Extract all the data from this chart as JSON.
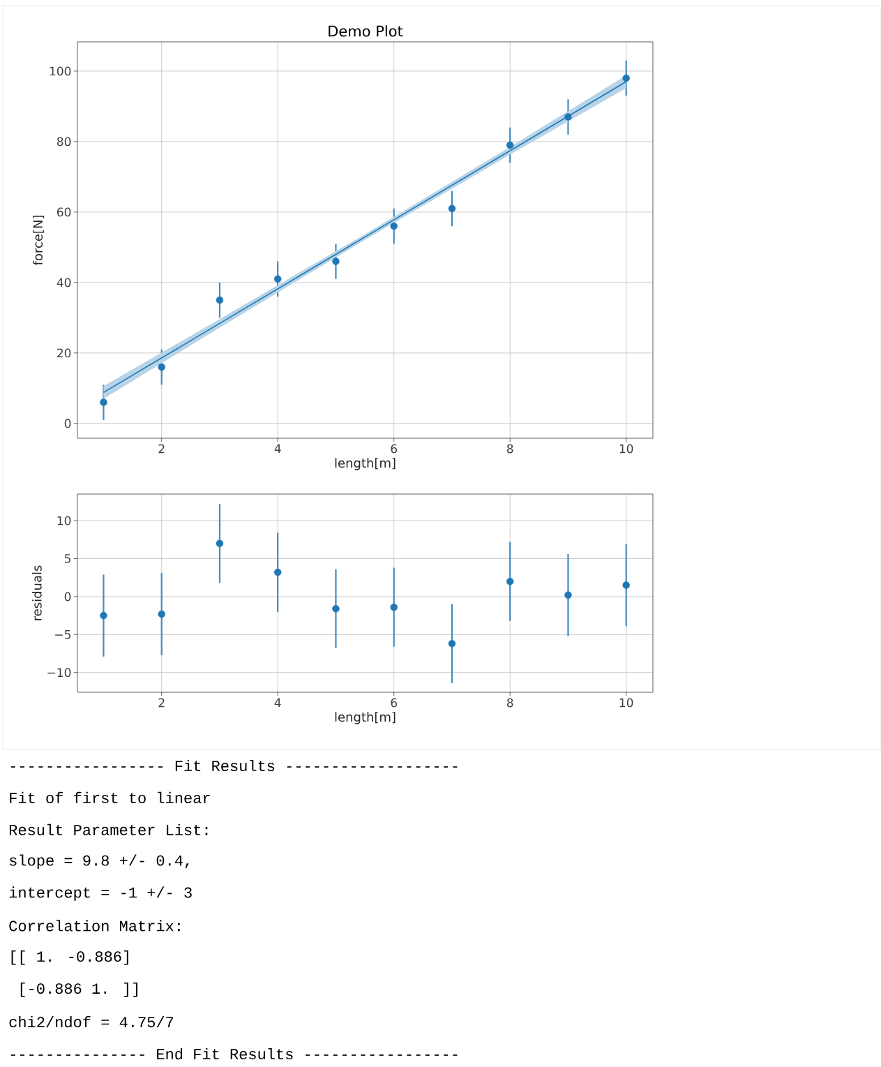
{
  "chart_data": [
    {
      "type": "scatter",
      "title": "Demo Plot",
      "xlabel": "length[m]",
      "ylabel": "force[N]",
      "grid": true,
      "marker": "circle",
      "xlim": [
        0.55,
        10.46
      ],
      "ylim": [
        -4.2,
        108.3
      ],
      "xticks": [
        2,
        4,
        6,
        8,
        10
      ],
      "yticks": [
        0,
        20,
        40,
        60,
        80,
        100
      ],
      "series": [
        {
          "type": "scatter",
          "color": "#1f77b4",
          "x": [
            1,
            2,
            3,
            4,
            5,
            6,
            7,
            8,
            9,
            10
          ],
          "values": [
            6,
            16,
            35,
            41,
            46,
            56,
            61,
            79,
            87,
            98
          ],
          "errors": [
            5,
            5,
            5,
            5,
            5,
            5,
            5,
            5,
            5,
            5
          ]
        },
        {
          "type": "line",
          "marker": "none",
          "color": "#1f77b4",
          "x": [
            1,
            3,
            5.5,
            8,
            10
          ],
          "values": [
            8.8,
            28.4,
            52.9,
            77.4,
            97
          ],
          "lower": [
            7.0,
            27.2,
            52.1,
            76.3,
            95.2
          ],
          "upper": [
            10.6,
            29.6,
            53.7,
            78.5,
            98.8
          ]
        }
      ]
    },
    {
      "type": "scatter",
      "xlabel": "length[m]",
      "ylabel": "residuals",
      "grid": true,
      "marker": "circle",
      "xlim": [
        0.55,
        10.46
      ],
      "ylim": [
        -12.6,
        13.5
      ],
      "xticks": [
        2,
        4,
        6,
        8,
        10
      ],
      "yticks": [
        {
          "value": -10,
          "label": "−10"
        },
        {
          "value": -5,
          "label": "−5"
        },
        0,
        5,
        10
      ],
      "series": [
        {
          "type": "scatter",
          "color": "#1f77b4",
          "x": [
            1,
            2,
            3,
            4,
            5,
            6,
            7,
            8,
            9,
            10
          ],
          "values": [
            -2.5,
            -2.3,
            7.0,
            3.2,
            -1.6,
            -1.4,
            -6.2,
            2.0,
            0.2,
            1.5
          ],
          "errors": [
            5.4,
            5.4,
            5.2,
            5.2,
            5.2,
            5.2,
            5.2,
            5.2,
            5.4,
            5.4
          ]
        }
      ]
    },
    {
      "type": "other",
      "title": "----------------- Fit Results -------------------",
      "annotations": [
        "Fit of first to linear",
        "Result Parameter List:",
        "slope = 9.8 +/- 0.4,",
        "intercept = -1 +/- 3",
        "Correlation Matrix:",
        "[[ 1.    -0.886]",
        " [-0.886  1.    ]]",
        "chi2/ndof = 4.75/7",
        "--------------- End Fit Results -----------------"
      ]
    }
  ]
}
